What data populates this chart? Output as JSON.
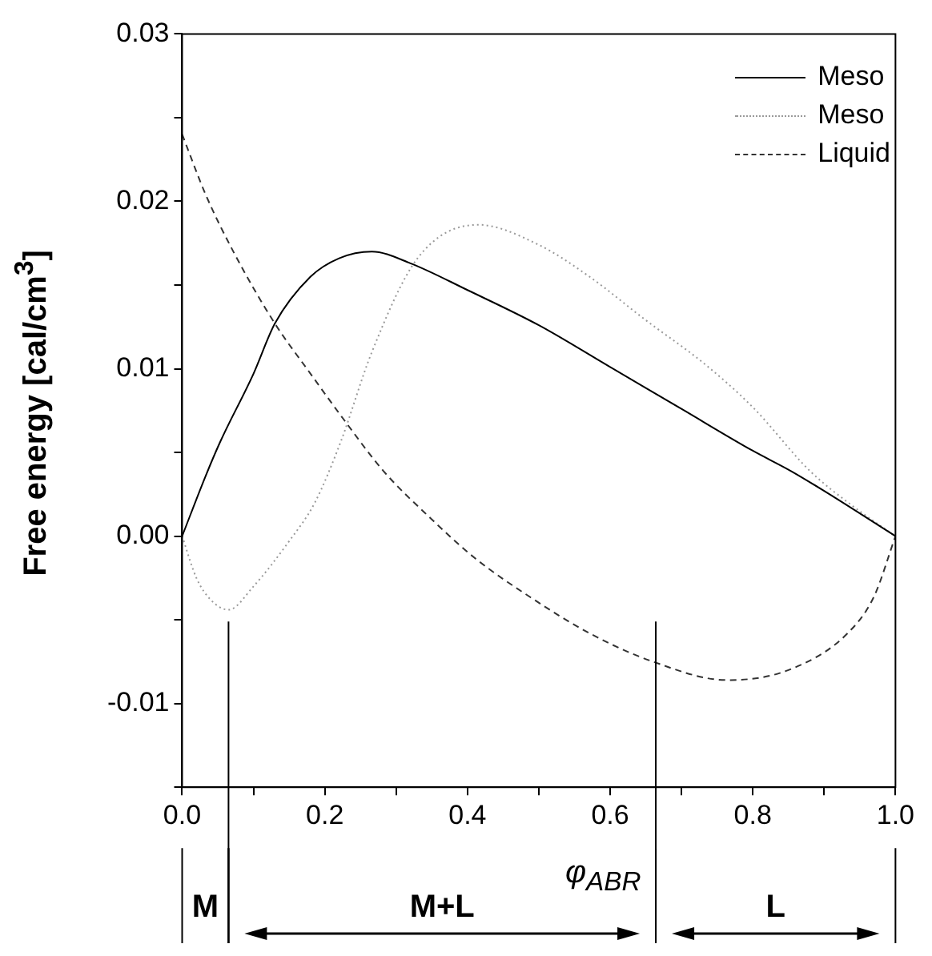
{
  "chart_data": {
    "type": "line",
    "xlabel": "φ$_{ABR}$",
    "ylabel": "Free energy [cal/cm$^{3}$]",
    "xlim": [
      0,
      1
    ],
    "ylim": [
      -0.015,
      0.03
    ],
    "xticks": [
      {
        "value": 0,
        "label": "0.0"
      },
      {
        "value": 0.1,
        "label": null
      },
      {
        "value": 0.2,
        "label": "0.2"
      },
      {
        "value": 0.3,
        "label": null
      },
      {
        "value": 0.4,
        "label": "0.4"
      },
      {
        "value": 0.5,
        "label": null
      },
      {
        "value": 0.6,
        "label": "0.6"
      },
      {
        "value": 0.7,
        "label": null
      },
      {
        "value": 0.8,
        "label": "0.8"
      },
      {
        "value": 0.9,
        "label": null
      },
      {
        "value": 1,
        "label": "1.0"
      }
    ],
    "yticks": [
      {
        "value": -0.015,
        "label": null
      },
      {
        "value": -0.01,
        "label": "-0.01"
      },
      {
        "value": -0.005,
        "label": null
      },
      {
        "value": 0,
        "label": "0.00"
      },
      {
        "value": 0.005,
        "label": null
      },
      {
        "value": 0.01,
        "label": "0.01"
      },
      {
        "value": 0.015,
        "label": null
      },
      {
        "value": 0.02,
        "label": "0.02"
      },
      {
        "value": 0.025,
        "label": null
      },
      {
        "value": 0.03,
        "label": "0.03"
      }
    ],
    "grid": false,
    "legend": "top right",
    "marker": "none",
    "series": [
      {
        "name": "Meso",
        "color": "#000000",
        "line_style": "solid",
        "x": [
          0,
          0.033,
          0.053,
          0.1,
          0.13,
          0.18,
          0.22,
          0.266,
          0.32,
          0.4,
          0.5,
          0.6,
          0.7,
          0.8,
          0.853,
          0.9,
          1
        ],
        "values": [
          0,
          0.0036,
          0.0056,
          0.0097,
          0.0127,
          0.0155,
          0.0166,
          0.017,
          0.0163,
          0.0147,
          0.0126,
          0.0101,
          0.0076,
          0.0051,
          0.0039,
          0.0027,
          0
        ]
      },
      {
        "name": "Meso",
        "color": "#9a9a9a",
        "line_style": "dotted",
        "x": [
          0,
          0.02,
          0.04,
          0.065,
          0.1,
          0.15,
          0.186,
          0.222,
          0.266,
          0.33,
          0.415,
          0.5,
          0.571,
          0.65,
          0.732,
          0.8,
          0.88,
          0.94,
          1
        ],
        "values": [
          0,
          -0.0025,
          -0.0038,
          -0.0044,
          -0.003,
          -0.0003,
          0.002,
          0.0056,
          0.011,
          0.0166,
          0.0186,
          0.0174,
          0.0155,
          0.0129,
          0.0103,
          0.0077,
          0.0039,
          0.0018,
          0
        ]
      },
      {
        "name": "Liquid",
        "color": "#333333",
        "line_style": "dashed",
        "x": [
          0,
          0.033,
          0.073,
          0.13,
          0.18,
          0.226,
          0.282,
          0.35,
          0.41,
          0.49,
          0.571,
          0.66,
          0.764,
          0.85,
          0.933,
          0.97,
          1
        ],
        "values": [
          0.024,
          0.0204,
          0.0169,
          0.0127,
          0.0097,
          0.007,
          0.0039,
          0.001,
          -0.0013,
          -0.0037,
          -0.0058,
          -0.0075,
          -0.0086,
          -0.008,
          -0.0058,
          -0.0036,
          0
        ]
      }
    ],
    "ref_lines": [
      {
        "axis": "x",
        "value": 0.065
      },
      {
        "axis": "x",
        "value": 0.664
      }
    ],
    "annotations": [
      "M",
      "M+L",
      "L"
    ]
  }
}
